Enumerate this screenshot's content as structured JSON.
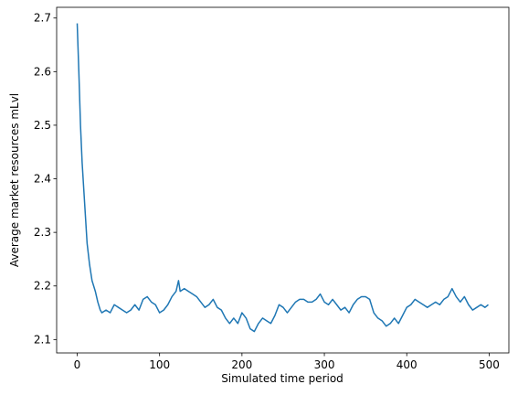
{
  "chart_data": {
    "type": "line",
    "xlabel": "Simulated time period",
    "ylabel": "Average market resources mLvl",
    "color": "#1f77b4",
    "x": [
      0,
      2,
      4,
      6,
      8,
      10,
      12,
      15,
      18,
      20,
      22,
      25,
      28,
      30,
      35,
      40,
      45,
      50,
      55,
      60,
      65,
      70,
      75,
      80,
      85,
      90,
      95,
      100,
      105,
      110,
      115,
      120,
      123,
      125,
      130,
      135,
      140,
      145,
      150,
      155,
      160,
      165,
      170,
      175,
      180,
      185,
      190,
      195,
      200,
      205,
      210,
      215,
      220,
      225,
      230,
      235,
      240,
      245,
      250,
      255,
      260,
      265,
      270,
      275,
      280,
      285,
      290,
      295,
      300,
      305,
      310,
      315,
      320,
      325,
      330,
      335,
      340,
      345,
      350,
      355,
      360,
      365,
      370,
      375,
      380,
      385,
      390,
      395,
      400,
      405,
      410,
      415,
      420,
      425,
      430,
      435,
      440,
      445,
      450,
      455,
      460,
      465,
      470,
      475,
      480,
      485,
      490,
      495,
      499
    ],
    "values": [
      2.69,
      2.6,
      2.5,
      2.43,
      2.38,
      2.33,
      2.28,
      2.24,
      2.21,
      2.2,
      2.19,
      2.17,
      2.155,
      2.15,
      2.155,
      2.15,
      2.165,
      2.16,
      2.155,
      2.15,
      2.155,
      2.165,
      2.155,
      2.175,
      2.18,
      2.17,
      2.165,
      2.15,
      2.155,
      2.165,
      2.18,
      2.19,
      2.21,
      2.19,
      2.195,
      2.19,
      2.185,
      2.18,
      2.17,
      2.16,
      2.165,
      2.175,
      2.16,
      2.155,
      2.14,
      2.13,
      2.14,
      2.13,
      2.15,
      2.14,
      2.12,
      2.115,
      2.13,
      2.14,
      2.135,
      2.13,
      2.145,
      2.165,
      2.16,
      2.15,
      2.16,
      2.17,
      2.175,
      2.175,
      2.17,
      2.17,
      2.175,
      2.185,
      2.17,
      2.165,
      2.175,
      2.165,
      2.155,
      2.16,
      2.15,
      2.165,
      2.175,
      2.18,
      2.18,
      2.175,
      2.15,
      2.14,
      2.135,
      2.125,
      2.13,
      2.14,
      2.13,
      2.145,
      2.16,
      2.165,
      2.175,
      2.17,
      2.165,
      2.16,
      2.165,
      2.17,
      2.165,
      2.175,
      2.18,
      2.195,
      2.18,
      2.17,
      2.18,
      2.165,
      2.155,
      2.16,
      2.165,
      2.16,
      2.165
    ],
    "xlim": [
      -24.95,
      523.95
    ],
    "ylim": [
      2.075,
      2.72
    ],
    "xticks": [
      0,
      100,
      200,
      300,
      400,
      500
    ],
    "yticks": [
      2.1,
      2.2,
      2.3,
      2.4,
      2.5,
      2.6,
      2.7
    ],
    "grid": false
  }
}
